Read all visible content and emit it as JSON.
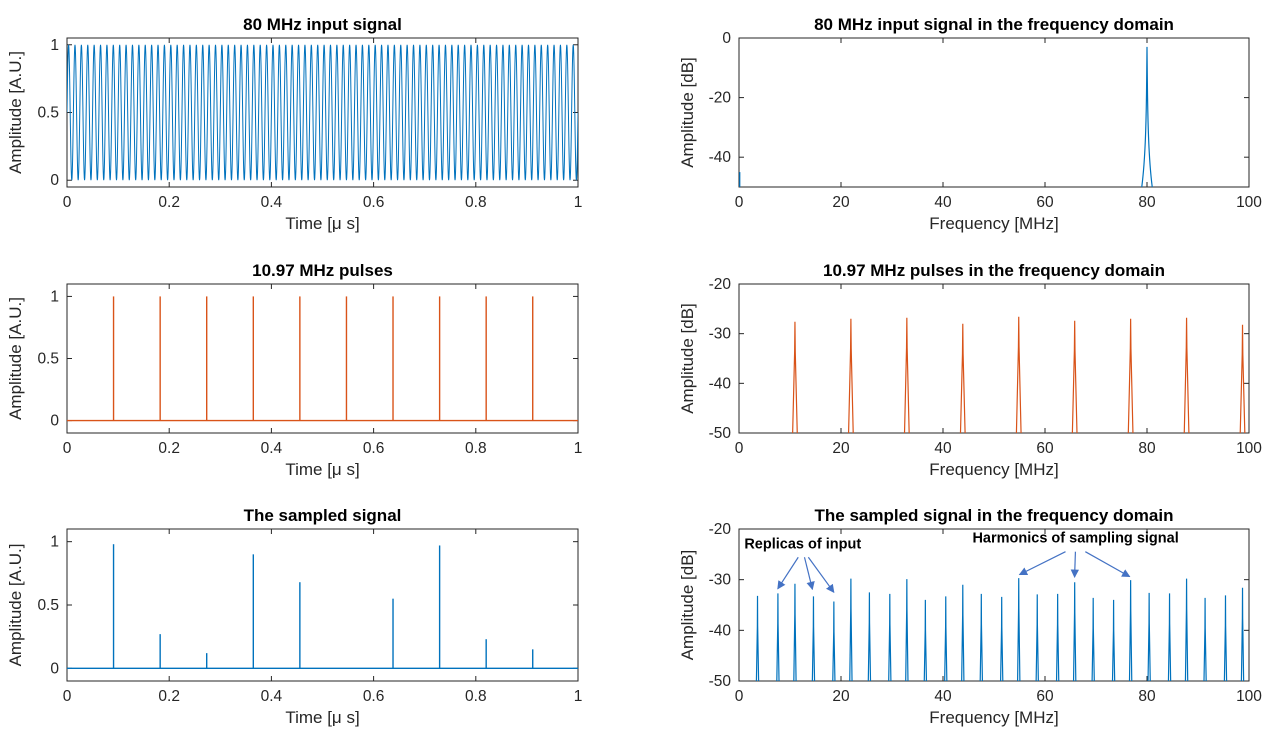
{
  "colors": {
    "blue": "#0072BD",
    "orange": "#D95319",
    "annotation_arrow": "#4472C4",
    "axis": "#262626"
  },
  "chart_data": [
    {
      "type": "line",
      "title": "80 MHz input signal",
      "xlabel": "Time [μ s]",
      "ylabel": "Amplitude [A.U.]",
      "xlim": [
        0,
        1
      ],
      "ylim": [
        -0.05,
        1.05
      ],
      "xticks": [
        0,
        0.2,
        0.4,
        0.6,
        0.8,
        1
      ],
      "xticklabels": [
        "0",
        "0.2",
        "0.4",
        "0.6",
        "0.8",
        "1"
      ],
      "yticks": [
        0,
        0.5,
        1
      ],
      "yticklabels": [
        "0",
        "0.5",
        "1"
      ],
      "color": "#0072BD",
      "series": [
        {
          "kind": "sinusoid",
          "frequency_mhz": 80,
          "min": 0,
          "max": 1
        }
      ]
    },
    {
      "type": "line",
      "title": "80 MHz input signal in the frequency domain",
      "xlabel": "Frequency [MHz]",
      "ylabel": "Amplitude [dB]",
      "xlim": [
        0,
        100
      ],
      "ylim": [
        -50,
        0
      ],
      "xticks": [
        0,
        20,
        40,
        60,
        80,
        100
      ],
      "xticklabels": [
        "0",
        "20",
        "40",
        "60",
        "80",
        "100"
      ],
      "yticks": [
        -40,
        -20,
        0
      ],
      "yticklabels": [
        "-40",
        "-20",
        "0"
      ],
      "color": "#0072BD",
      "series": [
        {
          "kind": "spectrum",
          "peaks": [
            {
              "x": 80,
              "y": -3
            }
          ],
          "base_width_mhz": 2,
          "dc_spike_top_db": -45
        }
      ]
    },
    {
      "type": "line",
      "title": "10.97 MHz pulses",
      "xlabel": "Time [μ s]",
      "ylabel": "Amplitude [A.U.]",
      "xlim": [
        0,
        1
      ],
      "ylim": [
        -0.1,
        1.1
      ],
      "xticks": [
        0,
        0.2,
        0.4,
        0.6,
        0.8,
        1
      ],
      "xticklabels": [
        "0",
        "0.2",
        "0.4",
        "0.6",
        "0.8",
        "1"
      ],
      "yticks": [
        0,
        0.5,
        1
      ],
      "yticklabels": [
        "0",
        "0.5",
        "1"
      ],
      "color": "#D95319",
      "series": [
        {
          "kind": "pulses",
          "baseline": 0,
          "x": [
            0.0911,
            0.1823,
            0.2734,
            0.3646,
            0.4557,
            0.5469,
            0.638,
            0.7292,
            0.8203,
            0.9114
          ],
          "y": [
            1,
            1,
            1,
            1,
            1,
            1,
            1,
            1,
            1,
            1
          ]
        }
      ]
    },
    {
      "type": "line",
      "title": "10.97 MHz pulses in the frequency domain",
      "xlabel": "Frequency [MHz]",
      "ylabel": "Amplitude [dB]",
      "xlim": [
        0,
        100
      ],
      "ylim": [
        -50,
        -20
      ],
      "xticks": [
        0,
        20,
        40,
        60,
        80,
        100
      ],
      "xticklabels": [
        "0",
        "20",
        "40",
        "60",
        "80",
        "100"
      ],
      "yticks": [
        -50,
        -40,
        -30,
        -20
      ],
      "yticklabels": [
        "-50",
        "-40",
        "-30",
        "-20"
      ],
      "color": "#D95319",
      "series": [
        {
          "kind": "spectrum",
          "base_width_mhz": 1.0,
          "peaks": [
            {
              "x": 10.97,
              "y": -27.6
            },
            {
              "x": 21.94,
              "y": -27.0
            },
            {
              "x": 32.91,
              "y": -26.8
            },
            {
              "x": 43.88,
              "y": -28.0
            },
            {
              "x": 54.85,
              "y": -26.6
            },
            {
              "x": 65.82,
              "y": -27.4
            },
            {
              "x": 76.79,
              "y": -27.0
            },
            {
              "x": 87.76,
              "y": -26.8
            },
            {
              "x": 98.73,
              "y": -28.2
            }
          ]
        }
      ]
    },
    {
      "type": "line",
      "title": "The sampled signal",
      "xlabel": "Time [μ s]",
      "ylabel": "Amplitude [A.U.]",
      "xlim": [
        0,
        1
      ],
      "ylim": [
        -0.1,
        1.1
      ],
      "xticks": [
        0,
        0.2,
        0.4,
        0.6,
        0.8,
        1
      ],
      "xticklabels": [
        "0",
        "0.2",
        "0.4",
        "0.6",
        "0.8",
        "1"
      ],
      "yticks": [
        0,
        0.5,
        1
      ],
      "yticklabels": [
        "0",
        "0.5",
        "1"
      ],
      "color": "#0072BD",
      "series": [
        {
          "kind": "pulses",
          "baseline": 0,
          "x": [
            0.0911,
            0.1823,
            0.2734,
            0.3646,
            0.4557,
            0.5469,
            0.638,
            0.7292,
            0.8203,
            0.9114
          ],
          "y": [
            0.98,
            0.27,
            0.12,
            0.9,
            0.68,
            0.0,
            0.55,
            0.97,
            0.23,
            0.15
          ]
        }
      ]
    },
    {
      "type": "line",
      "title": "The sampled signal in the frequency domain",
      "xlabel": "Frequency [MHz]",
      "ylabel": "Amplitude [dB]",
      "xlim": [
        0,
        100
      ],
      "ylim": [
        -50,
        -20
      ],
      "xticks": [
        0,
        20,
        40,
        60,
        80,
        100
      ],
      "xticklabels": [
        "0",
        "20",
        "40",
        "60",
        "80",
        "100"
      ],
      "yticks": [
        -50,
        -40,
        -30,
        -20
      ],
      "yticklabels": [
        "-50",
        "-40",
        "-30",
        "-20"
      ],
      "color": "#0072BD",
      "series": [
        {
          "kind": "spectrum",
          "base_width_mhz": 0.5,
          "peaks": [
            {
              "x": 3.63,
              "y": -33.2
            },
            {
              "x": 7.63,
              "y": -32.7
            },
            {
              "x": 10.97,
              "y": -30.8
            },
            {
              "x": 14.6,
              "y": -33.3
            },
            {
              "x": 18.6,
              "y": -34.3
            },
            {
              "x": 21.94,
              "y": -29.8
            },
            {
              "x": 25.57,
              "y": -32.5
            },
            {
              "x": 29.57,
              "y": -32.8
            },
            {
              "x": 32.91,
              "y": -29.9
            },
            {
              "x": 36.54,
              "y": -34.0
            },
            {
              "x": 40.54,
              "y": -33.3
            },
            {
              "x": 43.88,
              "y": -31.0
            },
            {
              "x": 47.51,
              "y": -32.8
            },
            {
              "x": 51.51,
              "y": -33.4
            },
            {
              "x": 54.85,
              "y": -29.7
            },
            {
              "x": 58.48,
              "y": -32.9
            },
            {
              "x": 62.48,
              "y": -32.8
            },
            {
              "x": 65.82,
              "y": -30.5
            },
            {
              "x": 69.45,
              "y": -33.6
            },
            {
              "x": 73.45,
              "y": -34.0
            },
            {
              "x": 76.79,
              "y": -30.1
            },
            {
              "x": 80.42,
              "y": -32.6
            },
            {
              "x": 84.42,
              "y": -32.7
            },
            {
              "x": 87.76,
              "y": -29.8
            },
            {
              "x": 91.39,
              "y": -33.6
            },
            {
              "x": 95.39,
              "y": -33.1
            },
            {
              "x": 98.73,
              "y": -31.6
            }
          ]
        }
      ],
      "annotations": [
        {
          "text": "Replicas of input",
          "anchor_x": 12.5,
          "anchor_y": -23.8,
          "targets": [
            {
              "x": 7.6,
              "y": -31.8
            },
            {
              "x": 14.4,
              "y": -31.9
            },
            {
              "x": 18.6,
              "y": -32.5
            }
          ]
        },
        {
          "text": "Harmonics of sampling signal",
          "anchor_x": 66.0,
          "anchor_y": -22.7,
          "targets": [
            {
              "x": 55.0,
              "y": -29.0
            },
            {
              "x": 65.8,
              "y": -29.5
            },
            {
              "x": 76.6,
              "y": -29.4
            }
          ]
        }
      ]
    }
  ]
}
